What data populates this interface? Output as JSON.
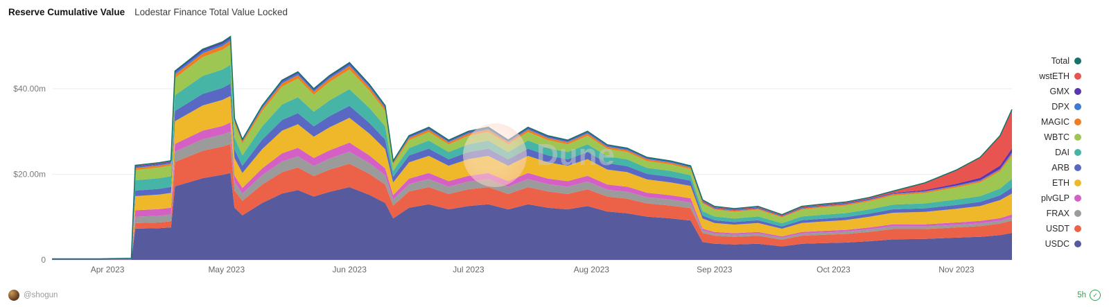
{
  "header": {
    "title": "Reserve Cumulative Value",
    "subtitle": "Lodestar Finance Total Value Locked"
  },
  "watermark": {
    "text": "Dune"
  },
  "footer": {
    "author": "@shogun",
    "refreshed": "5h",
    "check_glyph": "✓",
    "accent_green": "#2da44e"
  },
  "chart_data": {
    "type": "area",
    "stacked": true,
    "title": "Reserve Cumulative Value",
    "subtitle": "Lodestar Finance Total Value Locked",
    "ylabel": "",
    "xlabel": "",
    "unit": "USD millions",
    "ylim": [
      0,
      54
    ],
    "grid": "horizontal",
    "legend_position": "right",
    "x_domain": [
      0,
      242
    ],
    "x_days": [
      0,
      12,
      20,
      21,
      27,
      30,
      31,
      38,
      43,
      45,
      46,
      48,
      53,
      58,
      62,
      66,
      70,
      75,
      80,
      84,
      86,
      90,
      95,
      100,
      105,
      110,
      115,
      120,
      125,
      130,
      135,
      140,
      145,
      150,
      156,
      161,
      164,
      167,
      172,
      178,
      184,
      189,
      194,
      200,
      206,
      212,
      220,
      228,
      234,
      239,
      242
    ],
    "x_ticks": [
      {
        "day": 14,
        "label": "Apr 2023"
      },
      {
        "day": 44,
        "label": "May 2023"
      },
      {
        "day": 75,
        "label": "Jun 2023"
      },
      {
        "day": 105,
        "label": "Jul 2023"
      },
      {
        "day": 136,
        "label": "Aug 2023"
      },
      {
        "day": 167,
        "label": "Sep 2023"
      },
      {
        "day": 197,
        "label": "Oct 2023"
      },
      {
        "day": 228,
        "label": "Nov 2023"
      }
    ],
    "y_ticks": [
      {
        "value": 0,
        "label": "0"
      },
      {
        "value": 20,
        "label": "$20.00m"
      },
      {
        "value": 40,
        "label": "$40.00m"
      }
    ],
    "series": [
      {
        "name": "USDC",
        "color": "#585a9e",
        "values": [
          0.1,
          0.1,
          0.15,
          7.3,
          7.4,
          7.6,
          17.2,
          19.1,
          19.9,
          20.3,
          12.2,
          10.4,
          13.3,
          15.5,
          16.3,
          14.8,
          15.9,
          17.0,
          15.2,
          13.3,
          9.7,
          12.2,
          13.0,
          11.8,
          12.6,
          13.0,
          11.8,
          13.0,
          12.2,
          11.8,
          12.6,
          11.3,
          10.9,
          10.1,
          9.7,
          9.2,
          4.2,
          3.75,
          3.6,
          3.75,
          3.15,
          3.75,
          3.9,
          4.05,
          4.35,
          4.8,
          4.9,
          5.2,
          5.4,
          5.8,
          6.3
        ]
      },
      {
        "name": "USDT",
        "color": "#ec6249",
        "values": [
          0.02,
          0.02,
          0.03,
          1.3,
          1.35,
          1.4,
          5.7,
          6.4,
          6.6,
          6.8,
          4.0,
          3.4,
          4.3,
          5.0,
          5.3,
          4.8,
          5.2,
          5.5,
          4.9,
          4.3,
          3.0,
          3.8,
          4.0,
          3.6,
          3.9,
          4.0,
          3.6,
          4.0,
          3.8,
          3.6,
          3.9,
          3.5,
          3.4,
          3.1,
          3.0,
          2.9,
          2.1,
          1.9,
          1.8,
          1.9,
          1.6,
          1.9,
          1.95,
          2.0,
          2.2,
          2.4,
          2.3,
          2.4,
          2.5,
          2.7,
          2.9
        ]
      },
      {
        "name": "FRAX",
        "color": "#9b9b9b",
        "values": [
          0.01,
          0.01,
          0.02,
          1.5,
          1.55,
          1.6,
          2.4,
          2.7,
          2.8,
          2.9,
          2.0,
          1.7,
          2.2,
          2.5,
          2.6,
          2.4,
          2.6,
          2.8,
          2.5,
          2.2,
          1.4,
          1.7,
          1.9,
          1.7,
          1.8,
          1.9,
          1.7,
          1.9,
          1.7,
          1.7,
          1.8,
          1.6,
          1.6,
          1.4,
          1.4,
          1.3,
          0.56,
          0.5,
          0.48,
          0.5,
          0.42,
          0.5,
          0.52,
          0.54,
          0.58,
          0.64,
          0.6,
          0.6,
          0.62,
          0.65,
          0.7
        ]
      },
      {
        "name": "plvGLP",
        "color": "#d45fc5",
        "values": [
          0.01,
          0.01,
          0.02,
          1.5,
          1.55,
          1.6,
          1.8,
          2.0,
          2.0,
          2.1,
          1.5,
          1.3,
          1.6,
          1.9,
          2.0,
          1.8,
          1.9,
          2.1,
          1.8,
          1.6,
          1.0,
          1.3,
          1.4,
          1.3,
          1.35,
          1.4,
          1.3,
          1.4,
          1.3,
          1.3,
          1.35,
          1.2,
          1.2,
          1.1,
          1.0,
          1.0,
          0.42,
          0.38,
          0.36,
          0.38,
          0.32,
          0.38,
          0.39,
          0.4,
          0.44,
          0.48,
          0.5,
          0.55,
          0.58,
          0.62,
          0.7
        ]
      },
      {
        "name": "ETH",
        "color": "#efb82a",
        "values": [
          0.03,
          0.03,
          0.05,
          3.3,
          3.4,
          3.45,
          5.3,
          5.9,
          6.1,
          6.2,
          4.1,
          3.5,
          4.5,
          5.3,
          5.5,
          5.0,
          5.4,
          5.8,
          5.1,
          4.5,
          3.0,
          3.8,
          4.0,
          3.6,
          3.9,
          4.0,
          3.6,
          4.0,
          3.8,
          3.6,
          3.9,
          3.5,
          3.4,
          3.1,
          3.0,
          2.9,
          2.4,
          2.1,
          2.0,
          2.1,
          1.8,
          2.1,
          2.2,
          2.3,
          2.5,
          2.7,
          2.9,
          3.2,
          3.5,
          4.2,
          4.9
        ]
      },
      {
        "name": "ARB",
        "color": "#5968c3",
        "values": [
          0.01,
          0.01,
          0.02,
          1.3,
          1.35,
          1.4,
          2.4,
          2.7,
          2.8,
          2.9,
          2.0,
          1.7,
          2.2,
          2.5,
          2.6,
          2.4,
          2.6,
          2.8,
          2.5,
          2.2,
          1.3,
          1.6,
          1.7,
          1.5,
          1.65,
          1.7,
          1.5,
          1.7,
          1.6,
          1.5,
          1.65,
          1.5,
          1.4,
          1.3,
          1.3,
          1.2,
          0.7,
          0.63,
          0.6,
          0.63,
          0.53,
          0.63,
          0.65,
          0.68,
          0.73,
          0.8,
          0.85,
          0.9,
          0.95,
          1.1,
          1.4
        ]
      },
      {
        "name": "DAI",
        "color": "#46b5a7",
        "values": [
          0.02,
          0.02,
          0.03,
          2.4,
          2.5,
          2.5,
          3.7,
          4.2,
          4.3,
          4.4,
          2.8,
          2.4,
          3.1,
          3.6,
          3.7,
          3.4,
          3.7,
          3.9,
          3.5,
          3.1,
          1.4,
          1.7,
          1.9,
          1.7,
          1.8,
          1.9,
          1.7,
          1.9,
          1.7,
          1.7,
          1.8,
          1.6,
          1.6,
          1.4,
          1.4,
          1.3,
          1.0,
          0.88,
          0.84,
          0.88,
          0.74,
          0.88,
          0.91,
          0.95,
          1.0,
          1.1,
          1.15,
          1.25,
          1.35,
          1.6,
          2.1
        ]
      },
      {
        "name": "WBTC",
        "color": "#9dc653",
        "values": [
          0.02,
          0.02,
          0.03,
          2.4,
          2.5,
          2.5,
          4.0,
          4.4,
          4.6,
          4.7,
          3.3,
          2.8,
          3.6,
          4.2,
          4.4,
          4.0,
          4.3,
          4.6,
          4.1,
          3.6,
          1.5,
          1.9,
          2.0,
          1.8,
          2.0,
          2.0,
          1.8,
          2.0,
          1.9,
          1.8,
          2.0,
          1.75,
          1.7,
          1.6,
          1.5,
          1.4,
          1.8,
          1.6,
          1.56,
          1.6,
          1.37,
          1.6,
          1.7,
          1.76,
          1.89,
          2.1,
          2.4,
          2.8,
          3.2,
          4.0,
          5.3
        ]
      },
      {
        "name": "MAGIC",
        "color": "#ef7d21",
        "values": [
          0.005,
          0.005,
          0.01,
          0.45,
          0.45,
          0.46,
          0.8,
          0.9,
          0.9,
          0.95,
          0.6,
          0.5,
          0.65,
          0.76,
          0.8,
          0.72,
          0.77,
          0.83,
          0.74,
          0.65,
          0.39,
          0.49,
          0.53,
          0.48,
          0.51,
          0.53,
          0.48,
          0.53,
          0.49,
          0.48,
          0.51,
          0.46,
          0.44,
          0.41,
          0.39,
          0.37,
          0.28,
          0.25,
          0.24,
          0.25,
          0.21,
          0.25,
          0.26,
          0.27,
          0.29,
          0.32,
          0.3,
          0.33,
          0.35,
          0.4,
          0.53
        ]
      },
      {
        "name": "DPX",
        "color": "#3e7ad3",
        "values": [
          0.003,
          0.003,
          0.005,
          0.26,
          0.27,
          0.28,
          0.44,
          0.49,
          0.5,
          0.5,
          0.3,
          0.25,
          0.32,
          0.38,
          0.4,
          0.36,
          0.39,
          0.41,
          0.37,
          0.32,
          0.21,
          0.26,
          0.28,
          0.25,
          0.27,
          0.28,
          0.25,
          0.28,
          0.26,
          0.25,
          0.27,
          0.24,
          0.23,
          0.22,
          0.21,
          0.2,
          0.14,
          0.13,
          0.12,
          0.13,
          0.11,
          0.13,
          0.13,
          0.14,
          0.15,
          0.16,
          0.15,
          0.17,
          0.18,
          0.2,
          0.28
        ]
      },
      {
        "name": "GMX",
        "color": "#5e35b1",
        "values": [
          0.002,
          0.002,
          0.003,
          0.18,
          0.18,
          0.18,
          0.26,
          0.29,
          0.3,
          0.3,
          0.17,
          0.14,
          0.18,
          0.21,
          0.22,
          0.2,
          0.21,
          0.23,
          0.2,
          0.18,
          0.12,
          0.15,
          0.16,
          0.14,
          0.15,
          0.16,
          0.14,
          0.16,
          0.15,
          0.14,
          0.15,
          0.14,
          0.13,
          0.12,
          0.12,
          0.11,
          0.14,
          0.13,
          0.12,
          0.13,
          0.11,
          0.13,
          0.13,
          0.14,
          0.15,
          0.16,
          0.25,
          0.4,
          0.55,
          0.75,
          0.95
        ]
      },
      {
        "name": "wstETH",
        "color": "#e8544f",
        "values": [
          0.002,
          0.002,
          0.003,
          0.2,
          0.2,
          0.2,
          0.13,
          0.15,
          0.15,
          0.15,
          0.1,
          0.08,
          0.1,
          0.13,
          0.13,
          0.12,
          0.13,
          0.14,
          0.12,
          0.11,
          0.09,
          0.12,
          0.12,
          0.11,
          0.12,
          0.12,
          0.11,
          0.12,
          0.12,
          0.11,
          0.12,
          0.11,
          0.1,
          0.1,
          0.09,
          0.09,
          0.28,
          0.25,
          0.24,
          0.25,
          0.21,
          0.25,
          0.26,
          0.27,
          0.29,
          0.4,
          1.7,
          3.2,
          4.8,
          7.0,
          9.1
        ]
      }
    ],
    "total": {
      "name": "Total",
      "color": "#15736b",
      "derived": "sum of all series at each x"
    },
    "legend": [
      {
        "label": "Total",
        "color": "#15736b"
      },
      {
        "label": "wstETH",
        "color": "#e8544f"
      },
      {
        "label": "GMX",
        "color": "#5e35b1"
      },
      {
        "label": "DPX",
        "color": "#3e7ad3"
      },
      {
        "label": "MAGIC",
        "color": "#ef7d21"
      },
      {
        "label": "WBTC",
        "color": "#9dc653"
      },
      {
        "label": "DAI",
        "color": "#46b5a7"
      },
      {
        "label": "ARB",
        "color": "#5968c3"
      },
      {
        "label": "ETH",
        "color": "#efb82a"
      },
      {
        "label": "plvGLP",
        "color": "#d45fc5"
      },
      {
        "label": "FRAX",
        "color": "#9b9b9b"
      },
      {
        "label": "USDT",
        "color": "#ec6249"
      },
      {
        "label": "USDC",
        "color": "#585a9e"
      }
    ]
  }
}
